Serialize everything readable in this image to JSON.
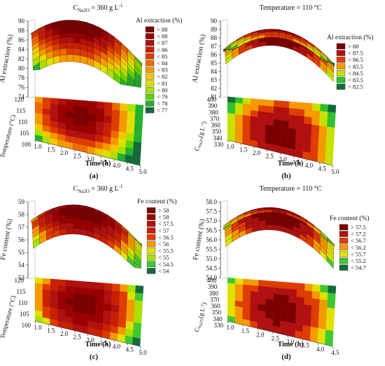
{
  "chart_data": [
    {
      "type": "surface3d",
      "panel_label": "(a)",
      "title": "C_Na2O = 360 g L⁻¹",
      "title_main": "C",
      "title_sub": "Na2O",
      "title_rest": " = 360 g L",
      "title_sup": "-1",
      "x_label": "Time (h)",
      "x_ticks": [
        "1.0",
        "1.5",
        "2.0",
        "2.5",
        "3.0",
        "3.5",
        "4.0",
        "4.5",
        "5.0"
      ],
      "y_label": "Temperature (°C)",
      "y_ticks": [
        "100",
        "105",
        "110",
        "115",
        "120"
      ],
      "z_label": "Al extraction (%)",
      "z_ticks": [
        "74",
        "76",
        "78",
        "80",
        "82",
        "84",
        "86",
        "88",
        "90"
      ],
      "legend_title": "Al extraction (%)",
      "legend": [
        {
          "label": "> 88",
          "color": "#7a0000"
        },
        {
          "label": "< 88",
          "color": "#9a0000"
        },
        {
          "label": "< 87",
          "color": "#b01010"
        },
        {
          "label": "< 86",
          "color": "#c82000"
        },
        {
          "label": "< 85",
          "color": "#de3c00"
        },
        {
          "label": "< 84",
          "color": "#ee6a00"
        },
        {
          "label": "< 83",
          "color": "#f49a00"
        },
        {
          "label": "< 82",
          "color": "#f0c800"
        },
        {
          "label": "< 81",
          "color": "#e0e000"
        },
        {
          "label": "< 80",
          "color": "#a8e000"
        },
        {
          "label": "< 79",
          "color": "#5cd400"
        },
        {
          "label": "< 78",
          "color": "#22b030"
        },
        {
          "label": "< 77",
          "color": "#166a3a"
        }
      ]
    },
    {
      "type": "surface3d",
      "panel_label": "(b)",
      "title": "Temperature = 110 °C",
      "x_label": "Time (h)",
      "x_ticks": [
        "1.0",
        "1.5",
        "2.0",
        "2.5",
        "3.0",
        "3.5",
        "4.0",
        "4.5",
        "5.0"
      ],
      "y_label": "C_Na2O (g L⁻¹)",
      "y_label_main": "C",
      "y_label_sub": "Na2O",
      "y_label_rest": "(g L",
      "y_label_sup": "-1",
      "y_ticks": [
        "330",
        "340",
        "350",
        "360",
        "370",
        "380",
        "390",
        "400"
      ],
      "z_label": "Al extraction (%)",
      "z_ticks": [
        "81",
        "82",
        "83",
        "84",
        "85",
        "86",
        "87",
        "88",
        "89",
        "90"
      ],
      "legend_title": "Al extraction (%)",
      "legend": [
        {
          "label": "> 88",
          "color": "#7a0000"
        },
        {
          "label": "< 87.5",
          "color": "#b01010"
        },
        {
          "label": "< 86.5",
          "color": "#de3c00"
        },
        {
          "label": "< 85.5",
          "color": "#f49a00"
        },
        {
          "label": "< 84.5",
          "color": "#c8e000"
        },
        {
          "label": "< 83.5",
          "color": "#30c030"
        },
        {
          "label": "< 82.5",
          "color": "#166a3a"
        }
      ]
    },
    {
      "type": "surface3d",
      "panel_label": "(c)",
      "title": "C_Na2O = 360 g L⁻¹",
      "title_main": "C",
      "title_sub": "Na2O",
      "title_rest": " = 360 g L",
      "title_sup": "-1",
      "x_label": "Time (h)",
      "x_ticks": [
        "1.0",
        "1.5",
        "2.0",
        "2.5",
        "3.0",
        "3.5",
        "4.0",
        "4.5",
        "5.0"
      ],
      "y_label": "Temperature (°C)",
      "y_ticks": [
        "100",
        "105",
        "110",
        "115",
        "120"
      ],
      "z_label": "Fe content (%)",
      "z_ticks": [
        "53",
        "54",
        "55",
        "56",
        "57",
        "58",
        "59"
      ],
      "legend_title": "Fe content (%)",
      "legend": [
        {
          "label": "> 58",
          "color": "#7a0000"
        },
        {
          "label": "< 58",
          "color": "#9a0000"
        },
        {
          "label": "< 57.5",
          "color": "#b01010"
        },
        {
          "label": "< 57",
          "color": "#c82000"
        },
        {
          "label": "< 56.5",
          "color": "#de3c00"
        },
        {
          "label": "< 56",
          "color": "#f49a00"
        },
        {
          "label": "< 55.5",
          "color": "#e0e000"
        },
        {
          "label": "< 55",
          "color": "#a8e000"
        },
        {
          "label": "< 54.5",
          "color": "#40c830"
        },
        {
          "label": "< 54",
          "color": "#166a3a"
        }
      ]
    },
    {
      "type": "surface3d",
      "panel_label": "(d)",
      "title": "Temperature = 110 °C",
      "x_label": "Time (h)",
      "x_ticks": [
        "1.0",
        "1.5",
        "2.0",
        "2.5",
        "3.0",
        "3.5",
        "4.0",
        "4.5"
      ],
      "y_label": "C_Na2O (g L⁻¹)",
      "y_label_main": "C",
      "y_label_sub": "Na2O",
      "y_label_rest": "(g L",
      "y_label_sup": "-1",
      "y_ticks": [
        "330",
        "340",
        "350",
        "360",
        "370",
        "380",
        "390",
        "400"
      ],
      "z_label": "Fe content (%)",
      "z_ticks": [
        "54.0",
        "54.5",
        "55.0",
        "55.5",
        "56.0",
        "56.5",
        "57.0",
        "57.5",
        "58.0"
      ],
      "legend_title": "Fe content (%)",
      "legend": [
        {
          "label": "> 57.5",
          "color": "#7a0000"
        },
        {
          "label": "< 57.2",
          "color": "#b01010"
        },
        {
          "label": "< 56.7",
          "color": "#de3c00"
        },
        {
          "label": "< 56.2",
          "color": "#f49a00"
        },
        {
          "label": "< 55.7",
          "color": "#e0e000"
        },
        {
          "label": "< 55.2",
          "color": "#40c830"
        },
        {
          "label": "< 54.7",
          "color": "#166a3a"
        }
      ]
    }
  ]
}
